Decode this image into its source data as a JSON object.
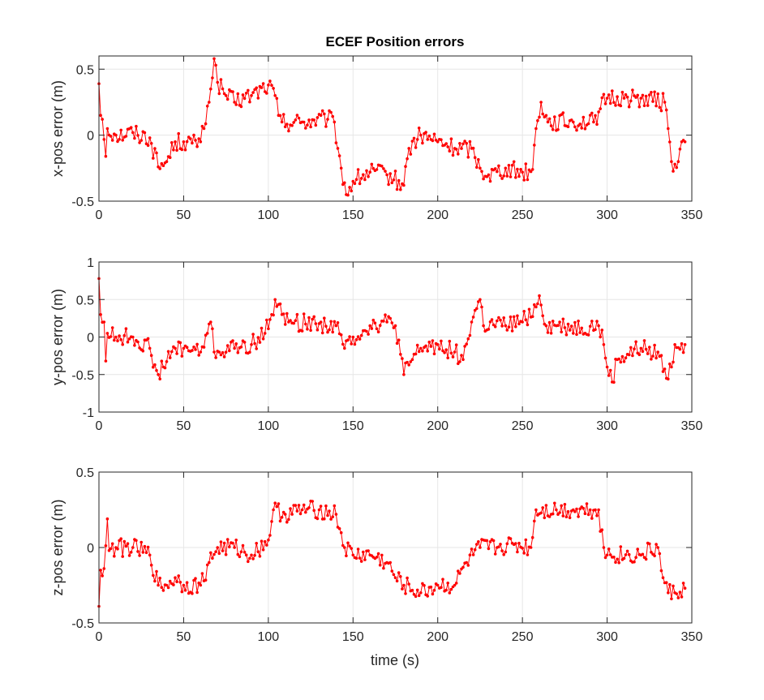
{
  "title": "ECEF Position errors",
  "xlabel": "time (s)",
  "colors": {
    "series": "#ff0000",
    "grid": "#e6e6e6",
    "axes": "#262626"
  },
  "chart_data": [
    {
      "type": "line",
      "ylabel": "x-pos error (m)",
      "xlim": [
        0,
        350
      ],
      "ylim": [
        -0.5,
        0.6
      ],
      "xticks": [
        0,
        50,
        100,
        150,
        200,
        250,
        300,
        350
      ],
      "yticks": [
        -0.5,
        0,
        0.5
      ],
      "grid": true,
      "anchors": [
        [
          0,
          0.39
        ],
        [
          1,
          0.15
        ],
        [
          2,
          0.12
        ],
        [
          4,
          -0.16
        ],
        [
          5,
          0.05
        ],
        [
          10,
          0
        ],
        [
          20,
          0.02
        ],
        [
          30,
          -0.02
        ],
        [
          35,
          -0.24
        ],
        [
          40,
          -0.2
        ],
        [
          45,
          -0.05
        ],
        [
          50,
          -0.05
        ],
        [
          55,
          -0.06
        ],
        [
          60,
          -0.05
        ],
        [
          62,
          0.05
        ],
        [
          64,
          0.22
        ],
        [
          66,
          0.35
        ],
        [
          68,
          0.58
        ],
        [
          70,
          0.4
        ],
        [
          75,
          0.3
        ],
        [
          80,
          0.25
        ],
        [
          90,
          0.3
        ],
        [
          100,
          0.38
        ],
        [
          104,
          0.3
        ],
        [
          106,
          0.15
        ],
        [
          108,
          0.1
        ],
        [
          120,
          0.1
        ],
        [
          135,
          0.12
        ],
        [
          139,
          0.1
        ],
        [
          141,
          -0.1
        ],
        [
          143,
          -0.25
        ],
        [
          146,
          -0.45
        ],
        [
          150,
          -0.35
        ],
        [
          160,
          -0.28
        ],
        [
          170,
          -0.3
        ],
        [
          180,
          -0.38
        ],
        [
          183,
          -0.1
        ],
        [
          190,
          0
        ],
        [
          200,
          -0.05
        ],
        [
          210,
          -0.1
        ],
        [
          220,
          -0.1
        ],
        [
          225,
          -0.25
        ],
        [
          230,
          -0.3
        ],
        [
          240,
          -0.25
        ],
        [
          250,
          -0.28
        ],
        [
          256,
          -0.26
        ],
        [
          258,
          0.05
        ],
        [
          261,
          0.25
        ],
        [
          265,
          0.1
        ],
        [
          280,
          0.1
        ],
        [
          292,
          0.1
        ],
        [
          296,
          0.2
        ],
        [
          300,
          0.28
        ],
        [
          310,
          0.28
        ],
        [
          320,
          0.28
        ],
        [
          334,
          0.25
        ],
        [
          336,
          0.05
        ],
        [
          338,
          -0.2
        ],
        [
          340,
          -0.22
        ],
        [
          342,
          -0.2
        ],
        [
          344,
          -0.05
        ],
        [
          346,
          -0.05
        ]
      ],
      "noise_amp": 0.07
    },
    {
      "type": "line",
      "ylabel": "y-pos error (m)",
      "xlim": [
        0,
        350
      ],
      "ylim": [
        -1,
        1
      ],
      "xticks": [
        0,
        50,
        100,
        150,
        200,
        250,
        300,
        350
      ],
      "yticks": [
        -1,
        -0.5,
        0,
        0.5,
        1
      ],
      "grid": true,
      "anchors": [
        [
          0,
          0.78
        ],
        [
          1,
          0.3
        ],
        [
          3,
          0.2
        ],
        [
          4,
          -0.32
        ],
        [
          5,
          0.05
        ],
        [
          10,
          0
        ],
        [
          20,
          0
        ],
        [
          30,
          -0.15
        ],
        [
          35,
          -0.5
        ],
        [
          38,
          -0.4
        ],
        [
          45,
          -0.15
        ],
        [
          50,
          -0.15
        ],
        [
          60,
          -0.2
        ],
        [
          64,
          0.05
        ],
        [
          66,
          0.2
        ],
        [
          68,
          -0.2
        ],
        [
          80,
          -0.15
        ],
        [
          90,
          -0.1
        ],
        [
          98,
          0.05
        ],
        [
          102,
          0.3
        ],
        [
          104,
          0.5
        ],
        [
          108,
          0.3
        ],
        [
          112,
          0.2
        ],
        [
          130,
          0.18
        ],
        [
          140,
          0.15
        ],
        [
          145,
          -0.15
        ],
        [
          150,
          0
        ],
        [
          160,
          0.15
        ],
        [
          170,
          0.2
        ],
        [
          175,
          0.15
        ],
        [
          180,
          -0.5
        ],
        [
          185,
          -0.3
        ],
        [
          190,
          -0.15
        ],
        [
          200,
          -0.1
        ],
        [
          210,
          -0.2
        ],
        [
          215,
          -0.3
        ],
        [
          220,
          0.2
        ],
        [
          225,
          0.5
        ],
        [
          227,
          0.15
        ],
        [
          240,
          0.15
        ],
        [
          250,
          0.2
        ],
        [
          258,
          0.4
        ],
        [
          260,
          0.55
        ],
        [
          264,
          0.15
        ],
        [
          270,
          0.15
        ],
        [
          285,
          0.12
        ],
        [
          295,
          0.15
        ],
        [
          298,
          -0.1
        ],
        [
          300,
          -0.4
        ],
        [
          303,
          -0.6
        ],
        [
          306,
          -0.3
        ],
        [
          320,
          -0.15
        ],
        [
          330,
          -0.2
        ],
        [
          335,
          -0.55
        ],
        [
          338,
          -0.4
        ],
        [
          340,
          -0.1
        ],
        [
          346,
          -0.1
        ]
      ],
      "noise_amp": 0.12
    },
    {
      "type": "line",
      "ylabel": "z-pos error (m)",
      "xlim": [
        0,
        350
      ],
      "ylim": [
        -0.5,
        0.5
      ],
      "xticks": [
        0,
        50,
        100,
        150,
        200,
        250,
        300,
        350
      ],
      "yticks": [
        -0.5,
        0,
        0.5
      ],
      "grid": true,
      "anchors": [
        [
          0,
          -0.39
        ],
        [
          1,
          -0.15
        ],
        [
          3,
          -0.14
        ],
        [
          5,
          0.19
        ],
        [
          6,
          -0.02
        ],
        [
          10,
          0
        ],
        [
          20,
          0
        ],
        [
          30,
          -0.05
        ],
        [
          35,
          -0.25
        ],
        [
          40,
          -0.25
        ],
        [
          45,
          -0.2
        ],
        [
          50,
          -0.25
        ],
        [
          60,
          -0.25
        ],
        [
          65,
          -0.1
        ],
        [
          70,
          0
        ],
        [
          80,
          0
        ],
        [
          90,
          -0.05
        ],
        [
          100,
          0.05
        ],
        [
          103,
          0.25
        ],
        [
          110,
          0.22
        ],
        [
          120,
          0.25
        ],
        [
          130,
          0.25
        ],
        [
          140,
          0.22
        ],
        [
          145,
          0
        ],
        [
          150,
          -0.05
        ],
        [
          160,
          -0.05
        ],
        [
          170,
          -0.1
        ],
        [
          175,
          -0.2
        ],
        [
          180,
          -0.25
        ],
        [
          190,
          -0.3
        ],
        [
          200,
          -0.25
        ],
        [
          210,
          -0.25
        ],
        [
          217,
          -0.1
        ],
        [
          225,
          0
        ],
        [
          235,
          0
        ],
        [
          245,
          0.02
        ],
        [
          255,
          0
        ],
        [
          258,
          0.25
        ],
        [
          270,
          0.25
        ],
        [
          280,
          0.25
        ],
        [
          290,
          0.25
        ],
        [
          295,
          0.25
        ],
        [
          298,
          0
        ],
        [
          300,
          -0.05
        ],
        [
          320,
          -0.05
        ],
        [
          330,
          0
        ],
        [
          333,
          -0.2
        ],
        [
          336,
          -0.3
        ],
        [
          340,
          -0.3
        ],
        [
          346,
          -0.27
        ]
      ],
      "noise_amp": 0.06
    }
  ]
}
